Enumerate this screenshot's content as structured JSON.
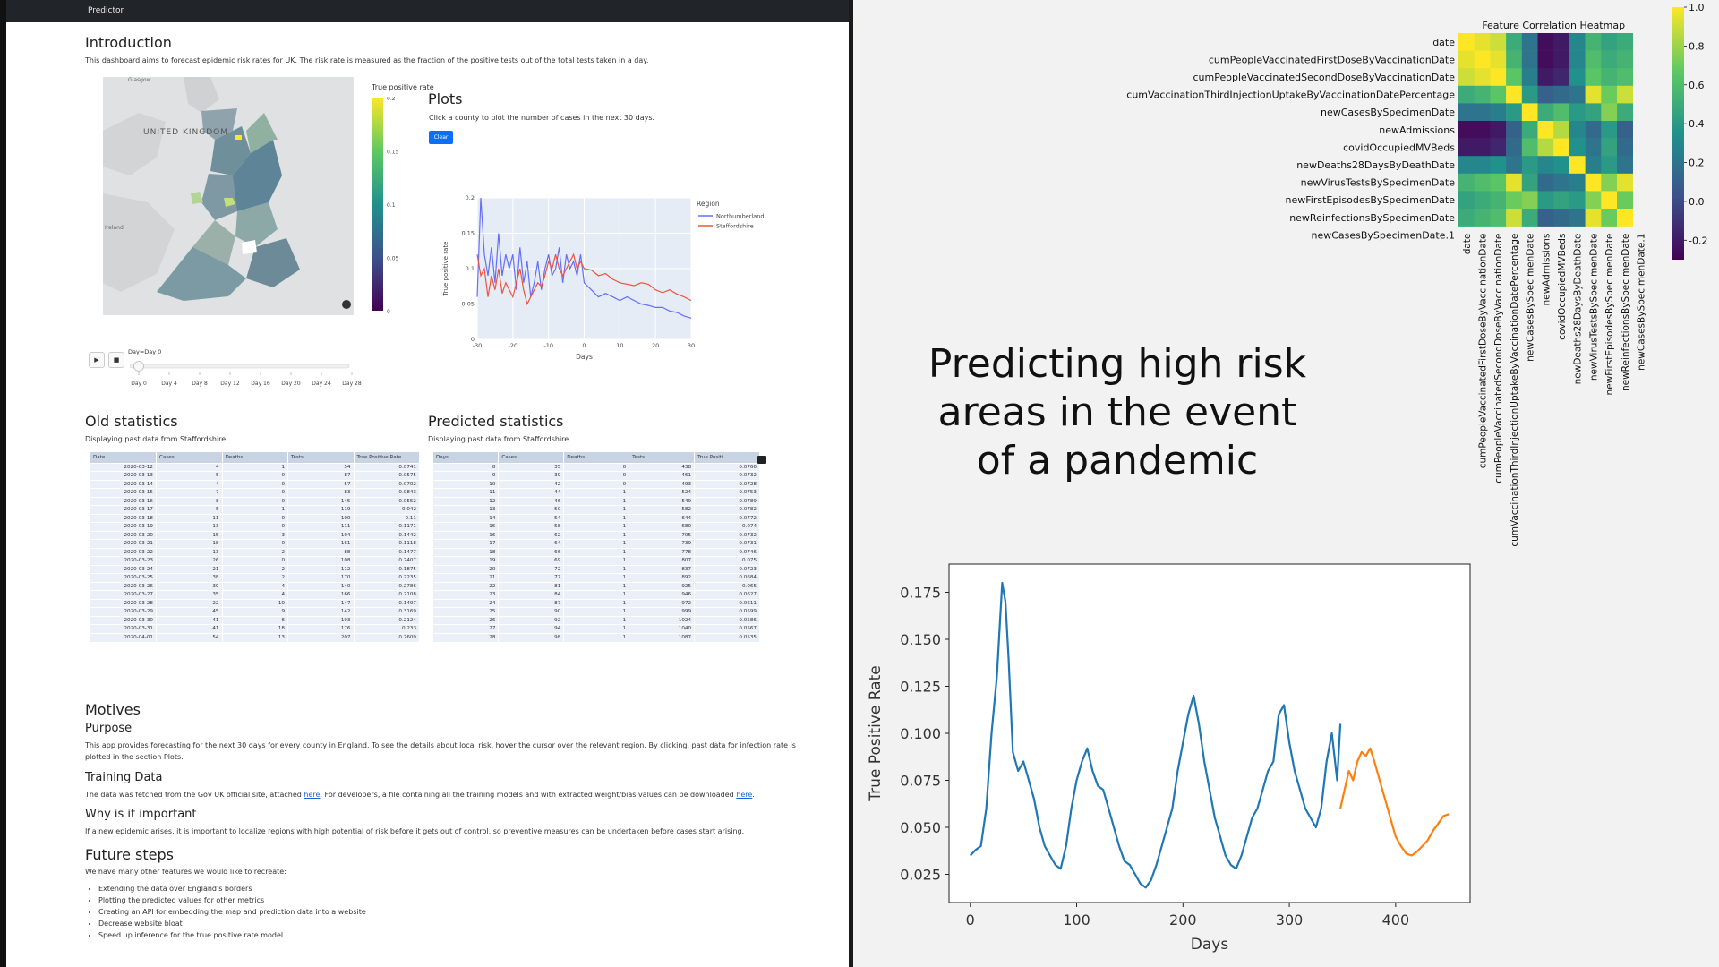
{
  "app": {
    "brand": "Predictor"
  },
  "intro": {
    "title": "Introduction",
    "text": "This dashboard aims to forecast epidemic risk rates for UK. The risk rate is measured as the fraction of the positive tests out of the total tests taken in a day."
  },
  "map": {
    "colorbar_title": "True positive rate",
    "colorbar_ticks": [
      "0.2",
      "0.15",
      "0.1",
      "0.05",
      "0"
    ],
    "place_labels": [
      "UNITED KINGDOM",
      "Glasgow",
      "Ireland"
    ],
    "info_icon": "info-icon"
  },
  "slider": {
    "current": "Day=Day 0",
    "ticks": [
      "Day 0",
      "Day 4",
      "Day 8",
      "Day 12",
      "Day 16",
      "Day 20",
      "Day 24",
      "Day 28"
    ],
    "play_icon": "play-icon",
    "stop_icon": "stop-icon",
    "position": 0
  },
  "plots": {
    "title": "Plots",
    "text": "Click a county to plot the number of cases in the next 30 days.",
    "clear_label": "Clear"
  },
  "line_chart": {
    "chart_data": {
      "type": "line",
      "xlabel": "Days",
      "ylabel": "True positive rate",
      "xlim": [
        -30,
        30
      ],
      "ylim": [
        0,
        0.2
      ],
      "x_ticks": [
        "-30",
        "-20",
        "-10",
        "0",
        "10",
        "20",
        "30"
      ],
      "y_ticks": [
        "0",
        "0.05",
        "0.1",
        "0.15",
        "0.2"
      ],
      "legend_title": "Region",
      "series": [
        {
          "name": "Northumberland",
          "color": "#636efa",
          "x": [
            -30,
            -29,
            -28,
            -27,
            -26,
            -25,
            -24,
            -23,
            -22,
            -21,
            -20,
            -19,
            -18,
            -17,
            -16,
            -15,
            -14,
            -13,
            -12,
            -11,
            -10,
            -9,
            -8,
            -7,
            -6,
            -5,
            -4,
            -3,
            -2,
            -1,
            0,
            2,
            4,
            6,
            8,
            10,
            12,
            14,
            16,
            18,
            20,
            22,
            24,
            26,
            28,
            30
          ],
          "values": [
            0.06,
            0.2,
            0.12,
            0.09,
            0.13,
            0.08,
            0.15,
            0.09,
            0.12,
            0.1,
            0.12,
            0.07,
            0.13,
            0.08,
            0.11,
            0.06,
            0.08,
            0.11,
            0.07,
            0.1,
            0.12,
            0.09,
            0.1,
            0.13,
            0.08,
            0.12,
            0.1,
            0.11,
            0.09,
            0.12,
            0.08,
            0.07,
            0.06,
            0.065,
            0.06,
            0.055,
            0.06,
            0.055,
            0.05,
            0.048,
            0.045,
            0.045,
            0.04,
            0.038,
            0.033,
            0.03
          ]
        },
        {
          "name": "Staffordshire",
          "color": "#ef553b",
          "x": [
            -30,
            -29,
            -28,
            -27,
            -26,
            -25,
            -24,
            -23,
            -22,
            -21,
            -20,
            -19,
            -18,
            -17,
            -16,
            -15,
            -14,
            -13,
            -12,
            -11,
            -10,
            -9,
            -8,
            -7,
            -6,
            -5,
            -4,
            -3,
            -2,
            -1,
            0,
            2,
            4,
            6,
            8,
            10,
            12,
            14,
            16,
            18,
            20,
            22,
            24,
            26,
            28,
            30
          ],
          "values": [
            0.12,
            0.09,
            0.1,
            0.06,
            0.09,
            0.07,
            0.1,
            0.065,
            0.08,
            0.07,
            0.06,
            0.08,
            0.1,
            0.07,
            0.05,
            0.06,
            0.07,
            0.08,
            0.075,
            0.09,
            0.11,
            0.1,
            0.12,
            0.1,
            0.09,
            0.1,
            0.11,
            0.12,
            0.1,
            0.11,
            0.1,
            0.098,
            0.09,
            0.093,
            0.085,
            0.08,
            0.078,
            0.076,
            0.08,
            0.078,
            0.07,
            0.066,
            0.07,
            0.064,
            0.06,
            0.055
          ]
        }
      ]
    }
  },
  "old_stats": {
    "title": "Old statistics",
    "subtitle": "Displaying past data from Staffordshire",
    "columns": [
      "Date",
      "Cases",
      "Deaths",
      "Tests",
      "True Positive Rate"
    ],
    "rows": [
      [
        "2020-03-12",
        "4",
        "1",
        "54",
        "0.0741"
      ],
      [
        "2020-03-13",
        "5",
        "0",
        "87",
        "0.0575"
      ],
      [
        "2020-03-14",
        "4",
        "0",
        "57",
        "0.0702"
      ],
      [
        "2020-03-15",
        "7",
        "0",
        "83",
        "0.0843"
      ],
      [
        "2020-03-16",
        "8",
        "0",
        "145",
        "0.0552"
      ],
      [
        "2020-03-17",
        "5",
        "1",
        "119",
        "0.042"
      ],
      [
        "2020-03-18",
        "11",
        "0",
        "100",
        "0.11"
      ],
      [
        "2020-03-19",
        "13",
        "0",
        "111",
        "0.1171"
      ],
      [
        "2020-03-20",
        "15",
        "3",
        "104",
        "0.1442"
      ],
      [
        "2020-03-21",
        "18",
        "0",
        "161",
        "0.1118"
      ],
      [
        "2020-03-22",
        "13",
        "2",
        "88",
        "0.1477"
      ],
      [
        "2020-03-23",
        "26",
        "0",
        "108",
        "0.2407"
      ],
      [
        "2020-03-24",
        "21",
        "2",
        "112",
        "0.1875"
      ],
      [
        "2020-03-25",
        "38",
        "2",
        "170",
        "0.2235"
      ],
      [
        "2020-03-26",
        "39",
        "4",
        "140",
        "0.2786"
      ],
      [
        "2020-03-27",
        "35",
        "4",
        "166",
        "0.2108"
      ],
      [
        "2020-03-28",
        "22",
        "10",
        "147",
        "0.1497"
      ],
      [
        "2020-03-29",
        "45",
        "9",
        "142",
        "0.3169"
      ],
      [
        "2020-03-30",
        "41",
        "6",
        "193",
        "0.2124"
      ],
      [
        "2020-03-31",
        "41",
        "18",
        "176",
        "0.233"
      ],
      [
        "2020-04-01",
        "54",
        "13",
        "207",
        "0.2609"
      ]
    ]
  },
  "pred_stats": {
    "title": "Predicted statistics",
    "subtitle": "Displaying past data from Staffordshire",
    "columns": [
      "Days",
      "Cases",
      "Deaths",
      "Tests",
      "True Positi..."
    ],
    "rows": [
      [
        "8",
        "35",
        "0",
        "438",
        "0.0766"
      ],
      [
        "9",
        "39",
        "0",
        "461",
        "0.0732"
      ],
      [
        "10",
        "42",
        "0",
        "493",
        "0.0728"
      ],
      [
        "11",
        "44",
        "1",
        "524",
        "0.0753"
      ],
      [
        "12",
        "46",
        "1",
        "549",
        "0.0789"
      ],
      [
        "13",
        "50",
        "1",
        "582",
        "0.0782"
      ],
      [
        "14",
        "54",
        "1",
        "644",
        "0.0772"
      ],
      [
        "15",
        "58",
        "1",
        "680",
        "0.074"
      ],
      [
        "16",
        "62",
        "1",
        "705",
        "0.0732"
      ],
      [
        "17",
        "64",
        "1",
        "739",
        "0.0731"
      ],
      [
        "18",
        "66",
        "1",
        "778",
        "0.0746"
      ],
      [
        "19",
        "69",
        "1",
        "807",
        "0.075"
      ],
      [
        "20",
        "72",
        "1",
        "837",
        "0.0723"
      ],
      [
        "21",
        "77",
        "1",
        "892",
        "0.0684"
      ],
      [
        "22",
        "81",
        "1",
        "925",
        "0.065"
      ],
      [
        "23",
        "84",
        "1",
        "946",
        "0.0627"
      ],
      [
        "24",
        "87",
        "1",
        "972",
        "0.0611"
      ],
      [
        "25",
        "90",
        "1",
        "999",
        "0.0599"
      ],
      [
        "26",
        "92",
        "1",
        "1024",
        "0.0586"
      ],
      [
        "27",
        "94",
        "1",
        "1040",
        "0.0567"
      ],
      [
        "28",
        "98",
        "1",
        "1087",
        "0.0535"
      ]
    ]
  },
  "motives": {
    "title": "Motives",
    "purpose_title": "Purpose",
    "purpose_text_1": "This app provides forecasting for the next 30 days for every county in England. To see the details about local risk, hover the cursor over the relevant region. By clicking, past data for infection rate is",
    "purpose_text_2": "plotted in the section Plots.",
    "training_title": "Training Data",
    "training_text_a": "The data was fetched from the Gov UK official site, attached ",
    "training_link_1": "here",
    "training_text_b": ". For developers, a file containing all the training models and with extracted weight/bias values can be downloaded ",
    "training_link_2": "here",
    "training_text_c": ".",
    "why_title": "Why is it important",
    "why_text": "If a new epidemic arises, it is important to localize regions with high potential of risk before it gets out of control, so preventive measures can be undertaken before cases start arising."
  },
  "future": {
    "title": "Future steps",
    "intro": "We have many other features we would like to recreate:",
    "items": [
      "Extending the data over England's borders",
      "Plotting the predicted values for other metrics",
      "Creating an API for embedding the map and prediction data into a website",
      "Decrease website bloat",
      "Speed up inference for the true positive rate model"
    ]
  },
  "poster": {
    "title": "Predicting high risk areas in the event of a pandemic"
  },
  "heatmap": {
    "chart_data": {
      "type": "heatmap",
      "title": "Feature Correlation Heatmap",
      "labels": [
        "date",
        "cumPeopleVaccinatedFirstDoseByVaccinationDate",
        "cumPeopleVaccinatedSecondDoseByVaccinationDate",
        "cumVaccinationThirdInjectionUptakeByVaccinationDatePercentage",
        "newCasesBySpecimenDate",
        "newAdmissions",
        "covidOccupiedMVBeds",
        "newDeaths28DaysByDeathDate",
        "newVirusTestsBySpecimenDate",
        "newFirstEpisodesBySpecimenDate",
        "newReinfectionsBySpecimenDate",
        "newCasesBySpecimenDate.1"
      ],
      "colorbar_ticks": [
        "1.0",
        "0.8",
        "0.6",
        "0.4",
        "0.2",
        "0.0",
        "-0.2"
      ],
      "vmin": -0.3,
      "vmax": 1.0,
      "matrix": [
        [
          1.0,
          0.95,
          0.9,
          0.5,
          0.2,
          -0.25,
          -0.2,
          0.3,
          0.55,
          0.45,
          0.5,
          0.2
        ],
        [
          0.95,
          1.0,
          0.95,
          0.55,
          0.2,
          -0.25,
          -0.2,
          0.3,
          0.6,
          0.5,
          0.55,
          0.2
        ],
        [
          0.9,
          0.95,
          1.0,
          0.65,
          0.25,
          -0.2,
          -0.15,
          0.35,
          0.65,
          0.55,
          0.6,
          0.25
        ],
        [
          0.5,
          0.55,
          0.65,
          1.0,
          0.4,
          0.1,
          0.15,
          0.2,
          0.95,
          0.7,
          0.9,
          0.4
        ],
        [
          0.2,
          0.2,
          0.25,
          0.4,
          1.0,
          0.5,
          0.6,
          0.4,
          0.45,
          0.75,
          0.5,
          1.0
        ],
        [
          -0.25,
          -0.25,
          -0.2,
          0.1,
          0.5,
          1.0,
          0.85,
          0.3,
          0.15,
          0.4,
          0.1,
          0.5
        ],
        [
          -0.2,
          -0.2,
          -0.15,
          0.15,
          0.6,
          0.85,
          1.0,
          0.35,
          0.2,
          0.45,
          0.15,
          0.6
        ],
        [
          0.3,
          0.3,
          0.35,
          0.2,
          0.4,
          0.3,
          0.35,
          1.0,
          0.25,
          0.4,
          0.2,
          0.4
        ],
        [
          0.55,
          0.6,
          0.65,
          0.95,
          0.45,
          0.15,
          0.2,
          0.25,
          1.0,
          0.75,
          0.95,
          0.45
        ],
        [
          0.45,
          0.5,
          0.55,
          0.7,
          0.75,
          0.4,
          0.45,
          0.4,
          0.75,
          1.0,
          0.7,
          0.75
        ],
        [
          0.5,
          0.55,
          0.6,
          0.9,
          0.5,
          0.1,
          0.15,
          0.2,
          0.95,
          0.7,
          1.0,
          0.5
        ],
        [
          0.2,
          0.2,
          0.25,
          0.4,
          1.0,
          0.5,
          0.6,
          0.4,
          0.45,
          0.75,
          0.5,
          1.0
        ]
      ]
    }
  },
  "tpr_chart": {
    "chart_data": {
      "type": "line",
      "xlabel": "Days",
      "ylabel": "True Positive Rate",
      "xlim": [
        -20,
        470
      ],
      "ylim": [
        0.01,
        0.19
      ],
      "x_ticks": [
        "0",
        "100",
        "200",
        "300",
        "400"
      ],
      "y_ticks": [
        "0.025",
        "0.050",
        "0.075",
        "0.100",
        "0.125",
        "0.150",
        "0.175"
      ],
      "series": [
        {
          "name": "history",
          "color": "#1f77b4",
          "x": [
            0,
            5,
            10,
            15,
            20,
            25,
            30,
            33,
            36,
            40,
            45,
            50,
            55,
            60,
            65,
            70,
            75,
            80,
            85,
            90,
            95,
            100,
            105,
            110,
            115,
            120,
            125,
            130,
            135,
            140,
            145,
            150,
            155,
            160,
            165,
            170,
            175,
            180,
            185,
            190,
            195,
            200,
            205,
            210,
            215,
            220,
            225,
            230,
            235,
            240,
            245,
            250,
            255,
            260,
            265,
            270,
            275,
            280,
            285,
            290,
            295,
            300,
            305,
            310,
            315,
            320,
            325,
            330,
            335,
            340,
            345,
            348
          ],
          "values": [
            0.035,
            0.038,
            0.04,
            0.06,
            0.1,
            0.13,
            0.18,
            0.17,
            0.14,
            0.09,
            0.08,
            0.085,
            0.075,
            0.065,
            0.05,
            0.04,
            0.035,
            0.03,
            0.028,
            0.04,
            0.06,
            0.075,
            0.085,
            0.092,
            0.08,
            0.072,
            0.07,
            0.06,
            0.05,
            0.04,
            0.032,
            0.03,
            0.025,
            0.02,
            0.018,
            0.022,
            0.03,
            0.04,
            0.05,
            0.06,
            0.08,
            0.095,
            0.11,
            0.12,
            0.105,
            0.085,
            0.07,
            0.055,
            0.045,
            0.035,
            0.03,
            0.028,
            0.035,
            0.045,
            0.055,
            0.06,
            0.07,
            0.08,
            0.085,
            0.11,
            0.115,
            0.095,
            0.08,
            0.07,
            0.06,
            0.055,
            0.05,
            0.06,
            0.085,
            0.1,
            0.075,
            0.105
          ]
        },
        {
          "name": "forecast",
          "color": "#ff7f0e",
          "x": [
            348,
            352,
            356,
            360,
            364,
            368,
            372,
            376,
            380,
            385,
            390,
            395,
            400,
            405,
            410,
            415,
            420,
            425,
            430,
            435,
            440,
            445,
            450
          ],
          "values": [
            0.06,
            0.07,
            0.08,
            0.075,
            0.085,
            0.09,
            0.088,
            0.092,
            0.085,
            0.075,
            0.065,
            0.055,
            0.045,
            0.04,
            0.036,
            0.035,
            0.037,
            0.04,
            0.043,
            0.048,
            0.052,
            0.056,
            0.057
          ]
        }
      ]
    }
  }
}
